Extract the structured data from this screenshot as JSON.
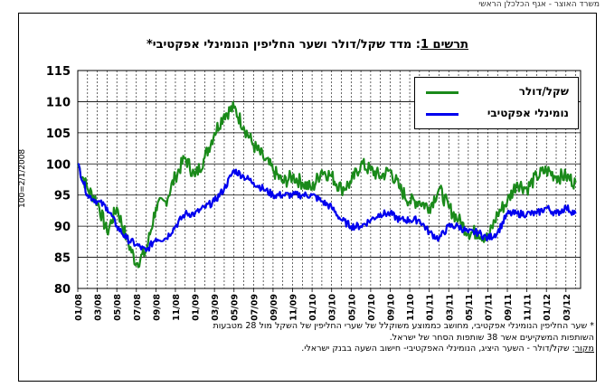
{
  "page": {
    "top_note": "משרד האוצר - אגף הכלכלן הראשי"
  },
  "chart_data": {
    "type": "line",
    "title_label": "תרשים 1",
    "title": ": מדד שקל/דולר ושער החליפין הנומינלי אפקטיבי*",
    "ylabel": "100=2/1/2008",
    "ylim": [
      80,
      115
    ],
    "yticks": [
      80,
      85,
      90,
      95,
      100,
      105,
      110,
      115
    ],
    "x_labels": [
      "01/08",
      "03/08",
      "05/08",
      "07/08",
      "09/08",
      "11/08",
      "01/09",
      "03/09",
      "05/09",
      "07/09",
      "09/09",
      "11/09",
      "01/10",
      "03/10",
      "05/10",
      "07/10",
      "09/10",
      "11/10",
      "01/11",
      "03/11",
      "05/11",
      "07/11",
      "09/11",
      "11/11",
      "01/12",
      "03/12"
    ],
    "grid": "vertical dashed lines, horizontal solid lines",
    "legend_position": "top-right",
    "series": [
      {
        "name": "שקל/דולר",
        "color": "#1a8a1a",
        "points": [
          [
            "01/08",
            100
          ],
          [
            "02/08",
            96
          ],
          [
            "03/08",
            94
          ],
          [
            "04/08",
            89
          ],
          [
            "05/08",
            93
          ],
          [
            "06/08",
            88
          ],
          [
            "07/08",
            84
          ],
          [
            "08/08",
            86
          ],
          [
            "09/08",
            93
          ],
          [
            "10/08",
            94
          ],
          [
            "11/08",
            98
          ],
          [
            "12/08",
            101
          ],
          [
            "01/09",
            98
          ],
          [
            "02/09",
            101
          ],
          [
            "03/09",
            105
          ],
          [
            "04/09",
            108
          ],
          [
            "05/09",
            109
          ],
          [
            "06/09",
            106
          ],
          [
            "07/09",
            103
          ],
          [
            "08/09",
            101
          ],
          [
            "09/09",
            99
          ],
          [
            "10/09",
            97
          ],
          [
            "11/09",
            98
          ],
          [
            "12/09",
            97
          ],
          [
            "01/10",
            96
          ],
          [
            "02/10",
            99
          ],
          [
            "03/10",
            98
          ],
          [
            "04/10",
            96
          ],
          [
            "05/10",
            97
          ],
          [
            "06/10",
            100
          ],
          [
            "07/10",
            99
          ],
          [
            "08/10",
            98
          ],
          [
            "09/10",
            99
          ],
          [
            "10/10",
            96
          ],
          [
            "11/10",
            94
          ],
          [
            "12/10",
            94
          ],
          [
            "01/11",
            93
          ],
          [
            "02/11",
            96
          ],
          [
            "03/11",
            93
          ],
          [
            "04/11",
            91
          ],
          [
            "05/11",
            89
          ],
          [
            "06/11",
            89
          ],
          [
            "07/11",
            88
          ],
          [
            "08/11",
            92
          ],
          [
            "09/11",
            94
          ],
          [
            "10/11",
            97
          ],
          [
            "11/11",
            96
          ],
          [
            "12/11",
            98
          ],
          [
            "01/12",
            99
          ],
          [
            "02/12",
            98
          ],
          [
            "03/12",
            98
          ],
          [
            "04/12",
            97
          ]
        ]
      },
      {
        "name": "נומינלי אפקטיבי",
        "color": "#0000ee",
        "points": [
          [
            "01/08",
            100
          ],
          [
            "02/08",
            95
          ],
          [
            "03/08",
            94
          ],
          [
            "04/08",
            93
          ],
          [
            "05/08",
            90
          ],
          [
            "06/08",
            88
          ],
          [
            "07/08",
            87
          ],
          [
            "08/08",
            86
          ],
          [
            "09/08",
            88
          ],
          [
            "10/08",
            88
          ],
          [
            "11/08",
            90
          ],
          [
            "12/08",
            92
          ],
          [
            "01/09",
            92
          ],
          [
            "02/09",
            93
          ],
          [
            "03/09",
            94
          ],
          [
            "04/09",
            96
          ],
          [
            "05/09",
            99
          ],
          [
            "06/09",
            98
          ],
          [
            "07/09",
            97
          ],
          [
            "08/09",
            96
          ],
          [
            "09/09",
            95
          ],
          [
            "10/09",
            95
          ],
          [
            "11/09",
            95
          ],
          [
            "12/09",
            95
          ],
          [
            "01/10",
            95
          ],
          [
            "02/10",
            94
          ],
          [
            "03/10",
            93
          ],
          [
            "04/10",
            91
          ],
          [
            "05/10",
            90
          ],
          [
            "06/10",
            90
          ],
          [
            "07/10",
            91
          ],
          [
            "08/10",
            92
          ],
          [
            "09/10",
            92
          ],
          [
            "10/10",
            91
          ],
          [
            "11/10",
            91
          ],
          [
            "12/10",
            91
          ],
          [
            "01/11",
            89
          ],
          [
            "02/11",
            88
          ],
          [
            "03/11",
            90
          ],
          [
            "04/11",
            90
          ],
          [
            "05/11",
            89
          ],
          [
            "06/11",
            89
          ],
          [
            "07/11",
            88
          ],
          [
            "08/11",
            89
          ],
          [
            "09/11",
            92
          ],
          [
            "10/11",
            92
          ],
          [
            "11/11",
            92
          ],
          [
            "12/11",
            92
          ],
          [
            "01/12",
            93
          ],
          [
            "02/12",
            92
          ],
          [
            "03/12",
            93
          ],
          [
            "04/12",
            92
          ]
        ]
      }
    ],
    "footnotes": {
      "note": "* שער החליפין הנומינלי אפקטיבי, מחושב כממוצע משוקלל של שערי החליפין של השקל מול 28 מטבעות השותפות המשקיעים אשר 38 שותפות הסחר של ישראל.",
      "source_label": "מקור",
      "source": ": שקל/דולר - השער היציג, הנומינלי האפקטיבי- חישוב השעה בבנק ישראלי."
    }
  }
}
